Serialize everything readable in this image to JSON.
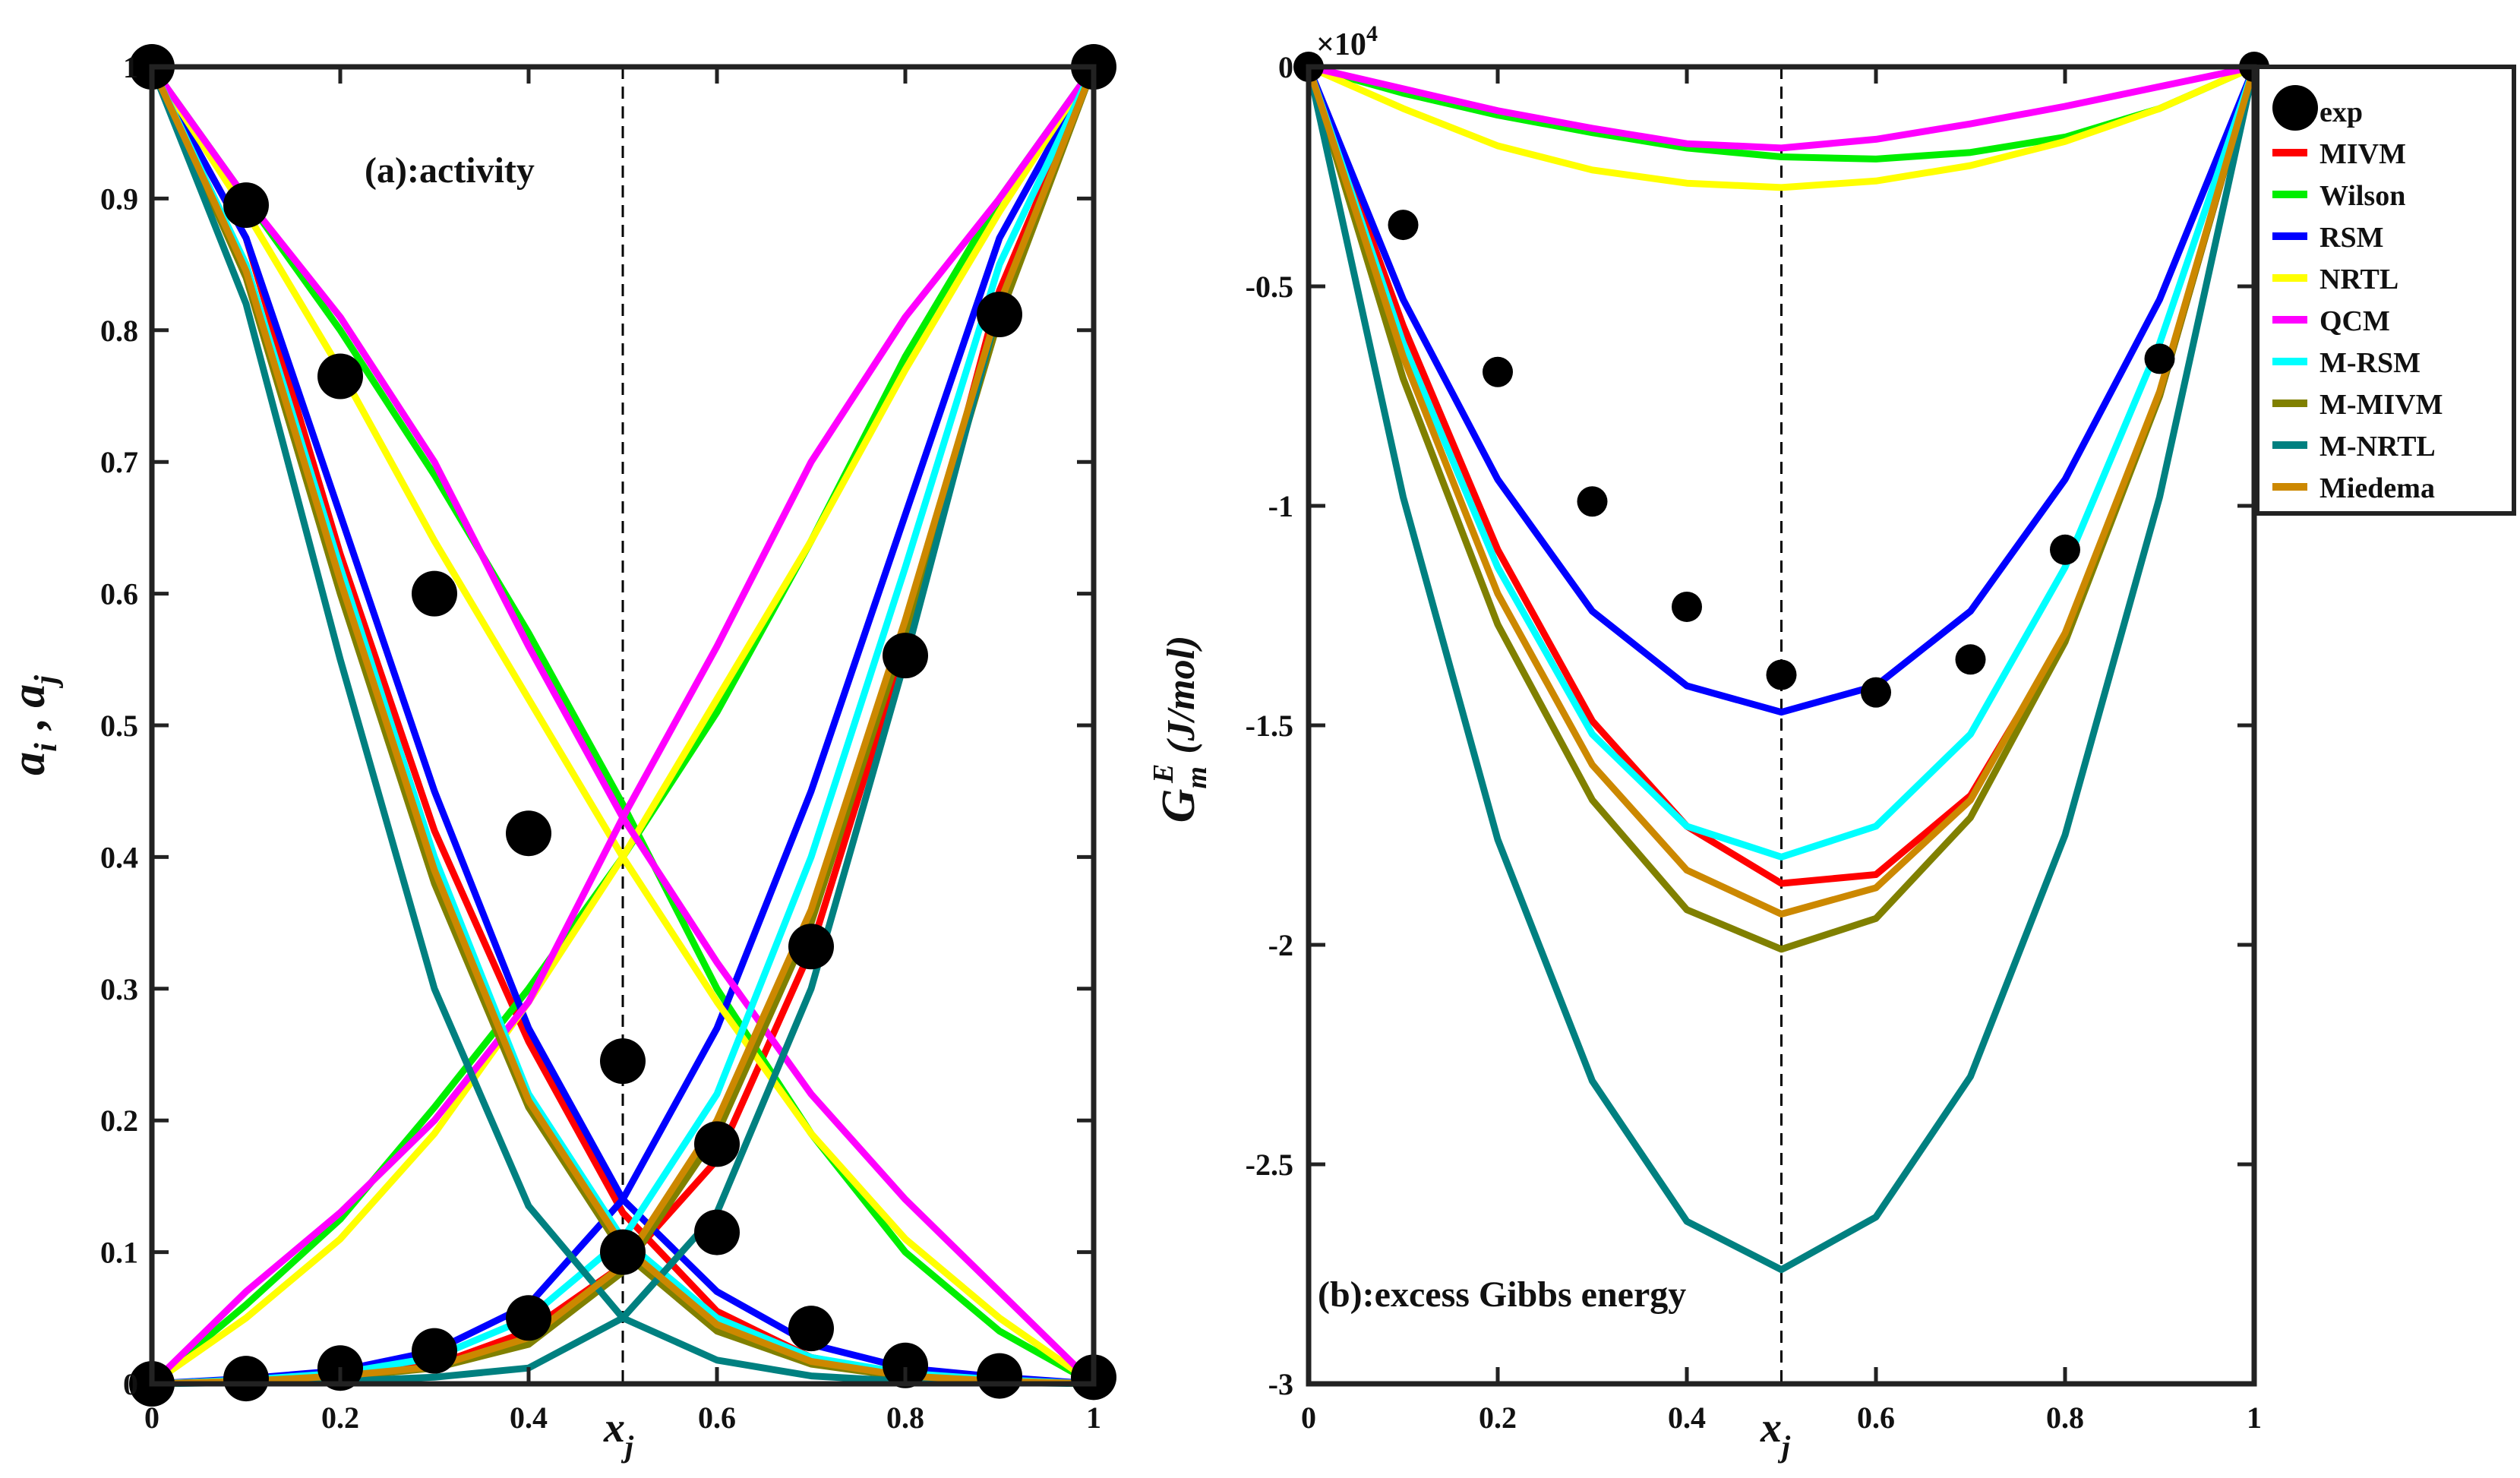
{
  "chart_data": [
    {
      "type": "line",
      "panel": "a",
      "annotation": "(a):activity",
      "ylabel_html": [
        "a",
        "i",
        " , ",
        "a",
        "j"
      ],
      "xlabel": [
        "x",
        "j"
      ],
      "xlim": [
        0,
        1
      ],
      "ylim": [
        0,
        1
      ],
      "xticks": [
        0,
        0.2,
        0.4,
        0.6,
        0.8,
        1
      ],
      "xtick_labels": [
        "0",
        "0.2",
        "0.4",
        "0.6",
        "0.8",
        "1"
      ],
      "yticks": [
        0,
        0.1,
        0.2,
        0.3,
        0.4,
        0.5,
        0.6,
        0.7,
        0.8,
        0.9,
        1
      ],
      "ytick_labels": [
        "0",
        "0.1",
        "0.2",
        "0.3",
        "0.4",
        "0.5",
        "0.6",
        "0.7",
        "0.8",
        "0.9",
        "1"
      ],
      "vline_x": 0.5,
      "x": [
        0,
        0.1,
        0.2,
        0.3,
        0.4,
        0.5,
        0.6,
        0.7,
        0.8,
        0.9,
        1.0
      ],
      "exp": {
        "a_i": [
          1.0,
          0.895,
          0.765,
          0.6,
          0.418,
          0.245,
          0.115,
          0.042,
          0.014,
          0.006,
          0.005
        ],
        "a_j": [
          0.0,
          0.004,
          0.012,
          0.025,
          0.05,
          0.1,
          0.182,
          0.332,
          0.553,
          0.812,
          1.0
        ]
      },
      "series": [
        {
          "name": "MIVM",
          "color": "#ff0000",
          "a_i": [
            1.0,
            0.87,
            0.63,
            0.42,
            0.26,
            0.13,
            0.055,
            0.02,
            0.007,
            0.002,
            0.0
          ],
          "a_j": [
            0.0,
            0.002,
            0.006,
            0.014,
            0.04,
            0.09,
            0.17,
            0.33,
            0.56,
            0.83,
            1.0
          ]
        },
        {
          "name": "Wilson",
          "color": "#00ee00",
          "a_i": [
            1.0,
            0.9,
            0.8,
            0.69,
            0.57,
            0.44,
            0.3,
            0.19,
            0.1,
            0.04,
            0.0
          ],
          "a_j": [
            0.0,
            0.06,
            0.125,
            0.21,
            0.3,
            0.4,
            0.51,
            0.64,
            0.78,
            0.9,
            1.0
          ]
        },
        {
          "name": "RSM",
          "color": "#0000ff",
          "a_i": [
            1.0,
            0.87,
            0.66,
            0.45,
            0.27,
            0.14,
            0.07,
            0.03,
            0.012,
            0.005,
            0.0
          ],
          "a_j": [
            0.0,
            0.004,
            0.01,
            0.025,
            0.06,
            0.14,
            0.27,
            0.45,
            0.66,
            0.87,
            1.0
          ]
        },
        {
          "name": "NRTL",
          "color": "#ffff00",
          "a_i": [
            1.0,
            0.89,
            0.77,
            0.64,
            0.52,
            0.4,
            0.29,
            0.19,
            0.11,
            0.05,
            0.0
          ],
          "a_j": [
            0.0,
            0.05,
            0.11,
            0.19,
            0.29,
            0.4,
            0.52,
            0.64,
            0.77,
            0.89,
            1.0
          ]
        },
        {
          "name": "QCM",
          "color": "#ff00ff",
          "a_i": [
            1.0,
            0.9,
            0.81,
            0.7,
            0.56,
            0.43,
            0.32,
            0.22,
            0.14,
            0.07,
            0.0
          ],
          "a_j": [
            0.0,
            0.07,
            0.13,
            0.2,
            0.29,
            0.43,
            0.56,
            0.7,
            0.81,
            0.9,
            1.0
          ]
        },
        {
          "name": "M-RSM",
          "color": "#00ffff",
          "a_i": [
            1.0,
            0.85,
            0.62,
            0.4,
            0.22,
            0.11,
            0.05,
            0.02,
            0.008,
            0.003,
            0.0
          ],
          "a_j": [
            0.0,
            0.003,
            0.008,
            0.02,
            0.05,
            0.11,
            0.22,
            0.4,
            0.62,
            0.85,
            1.0
          ]
        },
        {
          "name": "M-MIVM",
          "color": "#808000",
          "a_i": [
            1.0,
            0.84,
            0.6,
            0.38,
            0.21,
            0.1,
            0.04,
            0.015,
            0.005,
            0.002,
            0.0
          ],
          "a_j": [
            0.0,
            0.002,
            0.005,
            0.012,
            0.03,
            0.085,
            0.19,
            0.35,
            0.57,
            0.81,
            1.0
          ]
        },
        {
          "name": "M-NRTL",
          "color": "#008080",
          "a_i": [
            1.0,
            0.82,
            0.55,
            0.3,
            0.135,
            0.05,
            0.018,
            0.006,
            0.002,
            0.001,
            0.0
          ],
          "a_j": [
            0.0,
            0.001,
            0.002,
            0.005,
            0.012,
            0.05,
            0.13,
            0.3,
            0.55,
            0.82,
            1.0
          ]
        },
        {
          "name": "Miedema",
          "color": "#cc8800",
          "a_i": [
            1.0,
            0.845,
            0.61,
            0.39,
            0.215,
            0.105,
            0.045,
            0.017,
            0.006,
            0.002,
            0.0
          ],
          "a_j": [
            0.0,
            0.002,
            0.006,
            0.013,
            0.035,
            0.09,
            0.2,
            0.36,
            0.58,
            0.82,
            1.0
          ]
        }
      ]
    },
    {
      "type": "line",
      "panel": "b",
      "annotation": "(b):excess Gibbs energy",
      "ylabel": [
        "G",
        "m",
        "E",
        " (J/mol)"
      ],
      "xlabel": [
        "x",
        "j"
      ],
      "scale_label": [
        "×10",
        "4"
      ],
      "xlim": [
        0,
        1
      ],
      "ylim": [
        -30000,
        0
      ],
      "xticks": [
        0,
        0.2,
        0.4,
        0.6,
        0.8,
        1
      ],
      "xtick_labels": [
        "0",
        "0.2",
        "0.4",
        "0.6",
        "0.8",
        "1"
      ],
      "yticks": [
        0,
        -5000,
        -10000,
        -15000,
        -20000,
        -25000,
        -30000
      ],
      "ytick_labels": [
        "0",
        "-0.5",
        "-1",
        "-1.5",
        "-2",
        "-2.5",
        "-3"
      ],
      "vline_x": 0.5,
      "x": [
        0,
        0.1,
        0.2,
        0.3,
        0.4,
        0.5,
        0.6,
        0.7,
        0.8,
        0.9,
        1.0
      ],
      "exp": [
        0,
        -3600,
        -6950,
        -9900,
        -12300,
        -13850,
        -14250,
        -13500,
        -11000,
        -6650,
        0
      ],
      "legend": [
        "exp",
        "MIVM",
        "Wilson",
        "RSM",
        "NRTL",
        "QCM",
        "M-RSM",
        "M-MIVM",
        "M-NRTL",
        "Miedema"
      ],
      "legend_position": "top-right",
      "series": [
        {
          "name": "MIVM",
          "color": "#ff0000",
          "values": [
            0,
            -5900,
            -11000,
            -14900,
            -17300,
            -18600,
            -18400,
            -16600,
            -13000,
            -7500,
            0
          ]
        },
        {
          "name": "Wilson",
          "color": "#00ee00",
          "values": [
            0,
            -600,
            -1100,
            -1500,
            -1850,
            -2050,
            -2100,
            -1950,
            -1600,
            -950,
            0
          ]
        },
        {
          "name": "RSM",
          "color": "#0000ff",
          "values": [
            0,
            -5300,
            -9400,
            -12400,
            -14100,
            -14700,
            -14100,
            -12400,
            -9400,
            -5300,
            0
          ]
        },
        {
          "name": "NRTL",
          "color": "#ffff00",
          "values": [
            0,
            -950,
            -1800,
            -2350,
            -2650,
            -2750,
            -2600,
            -2250,
            -1700,
            -950,
            0
          ]
        },
        {
          "name": "QCM",
          "color": "#ff00ff",
          "values": [
            0,
            -500,
            -1000,
            -1400,
            -1750,
            -1850,
            -1650,
            -1300,
            -900,
            -450,
            0
          ]
        },
        {
          "name": "M-RSM",
          "color": "#00ffff",
          "values": [
            0,
            -6300,
            -11400,
            -15200,
            -17300,
            -18000,
            -17300,
            -15200,
            -11400,
            -6300,
            0
          ]
        },
        {
          "name": "M-MIVM",
          "color": "#808000",
          "values": [
            0,
            -7100,
            -12700,
            -16700,
            -19200,
            -20100,
            -19400,
            -17100,
            -13100,
            -7500,
            0
          ]
        },
        {
          "name": "M-NRTL",
          "color": "#008080",
          "values": [
            0,
            -9800,
            -17600,
            -23100,
            -26300,
            -27400,
            -26200,
            -23000,
            -17500,
            -9800,
            0
          ]
        },
        {
          "name": "Miedema",
          "color": "#cc8800",
          "values": [
            0,
            -6600,
            -12000,
            -15900,
            -18300,
            -19300,
            -18700,
            -16700,
            -12900,
            -7400,
            0
          ]
        }
      ]
    }
  ]
}
